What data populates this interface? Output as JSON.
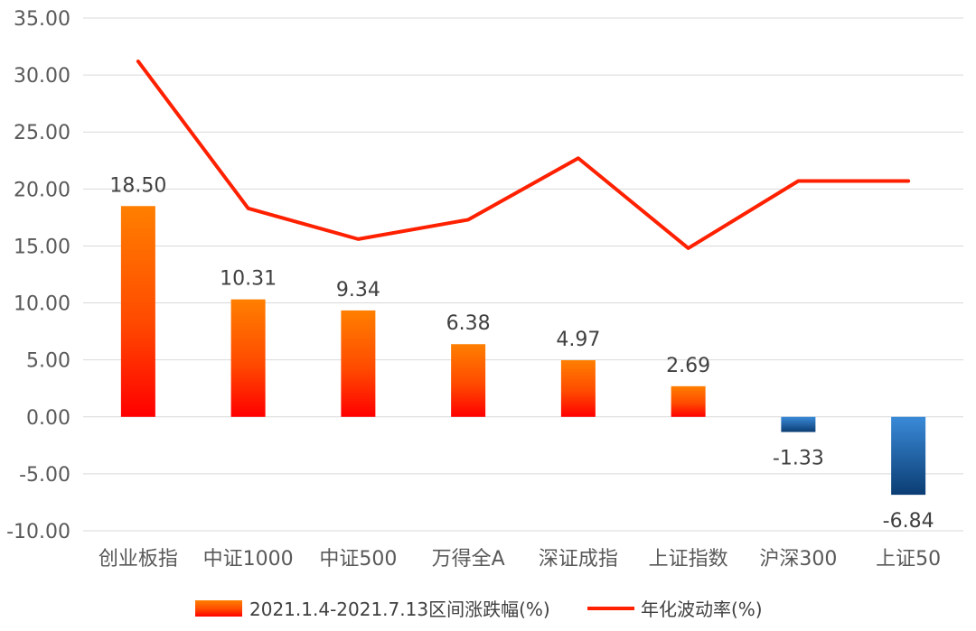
{
  "chart_data": {
    "type": "bar",
    "categories": [
      "创业板指",
      "中证1000",
      "中证500",
      "万得全A",
      "深证成指",
      "上证指数",
      "沪深300",
      "上证50"
    ],
    "series": [
      {
        "name": "2021.1.4-2021.7.13区间涨跌幅(%)",
        "type": "bar",
        "values": [
          18.5,
          10.31,
          9.34,
          6.38,
          4.97,
          2.69,
          -1.33,
          -6.84
        ],
        "labels": [
          "18.50",
          "10.31",
          "9.34",
          "6.38",
          "4.97",
          "2.69",
          "-1.33",
          "-6.84"
        ]
      },
      {
        "name": "年化波动率(%)",
        "type": "line",
        "values": [
          31.2,
          18.3,
          15.6,
          17.3,
          22.7,
          14.8,
          20.7,
          20.7
        ]
      }
    ],
    "ylim": [
      -10,
      35
    ],
    "yticks": [
      "35.00",
      "30.00",
      "25.00",
      "20.00",
      "15.00",
      "10.00",
      "5.00",
      "0.00",
      "-5.00",
      "-10.00"
    ],
    "grid": true,
    "legend_position": "bottom",
    "colors": {
      "positive_bar_top": "#ff7f00",
      "positive_bar_bottom": "#ff0000",
      "negative_bar_light": "#3a8ad8",
      "negative_bar_dark": "#0b3d73",
      "line": "#ff2000",
      "grid": "#d9d9d9"
    }
  }
}
